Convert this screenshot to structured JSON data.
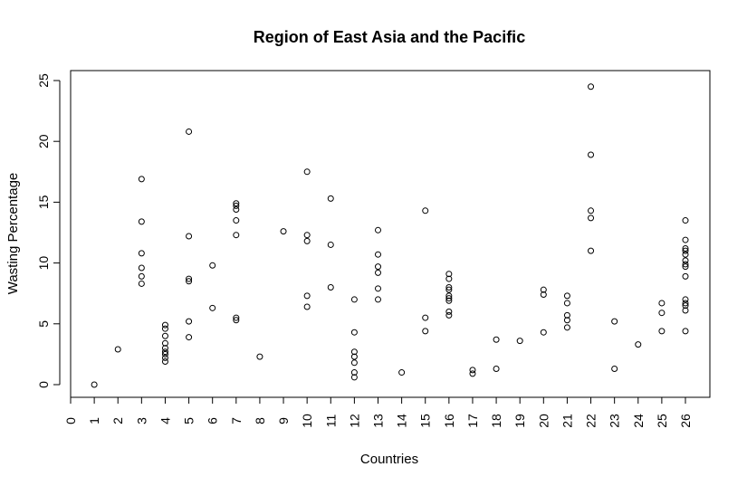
{
  "chart_data": {
    "type": "scatter",
    "title": "Region of East Asia and the Pacific",
    "xlabel": "Countries",
    "ylabel": "Wasting Percentage",
    "xlim": [
      0,
      26
    ],
    "ylim": [
      0,
      25
    ],
    "x_ticks": [
      0,
      1,
      2,
      3,
      4,
      5,
      6,
      7,
      8,
      9,
      10,
      11,
      12,
      13,
      14,
      15,
      16,
      17,
      18,
      19,
      20,
      21,
      22,
      23,
      24,
      25,
      26
    ],
    "y_ticks": [
      0,
      5,
      10,
      15,
      20,
      25
    ],
    "grid": false,
    "legend": "none",
    "marker": "open-circle",
    "points": [
      {
        "x": 1,
        "y": 0.0
      },
      {
        "x": 2,
        "y": 2.9
      },
      {
        "x": 3,
        "y": 16.9
      },
      {
        "x": 3,
        "y": 13.4
      },
      {
        "x": 3,
        "y": 10.8
      },
      {
        "x": 3,
        "y": 9.6
      },
      {
        "x": 3,
        "y": 8.9
      },
      {
        "x": 3,
        "y": 8.3
      },
      {
        "x": 4,
        "y": 4.9
      },
      {
        "x": 4,
        "y": 4.6
      },
      {
        "x": 4,
        "y": 4.0
      },
      {
        "x": 4,
        "y": 3.4
      },
      {
        "x": 4,
        "y": 3.0
      },
      {
        "x": 4,
        "y": 2.7
      },
      {
        "x": 4,
        "y": 2.5
      },
      {
        "x": 4,
        "y": 2.2
      },
      {
        "x": 4,
        "y": 1.9
      },
      {
        "x": 5,
        "y": 20.8
      },
      {
        "x": 5,
        "y": 12.2
      },
      {
        "x": 5,
        "y": 8.7
      },
      {
        "x": 5,
        "y": 8.5
      },
      {
        "x": 5,
        "y": 5.2
      },
      {
        "x": 5,
        "y": 3.9
      },
      {
        "x": 6,
        "y": 9.8
      },
      {
        "x": 6,
        "y": 6.3
      },
      {
        "x": 7,
        "y": 14.9
      },
      {
        "x": 7,
        "y": 14.7
      },
      {
        "x": 7,
        "y": 14.4
      },
      {
        "x": 7,
        "y": 13.5
      },
      {
        "x": 7,
        "y": 12.3
      },
      {
        "x": 7,
        "y": 5.5
      },
      {
        "x": 7,
        "y": 5.3
      },
      {
        "x": 8,
        "y": 2.3
      },
      {
        "x": 9,
        "y": 12.6
      },
      {
        "x": 10,
        "y": 17.5
      },
      {
        "x": 10,
        "y": 12.3
      },
      {
        "x": 10,
        "y": 11.8
      },
      {
        "x": 10,
        "y": 7.3
      },
      {
        "x": 10,
        "y": 6.4
      },
      {
        "x": 11,
        "y": 15.3
      },
      {
        "x": 11,
        "y": 11.5
      },
      {
        "x": 11,
        "y": 8.0
      },
      {
        "x": 12,
        "y": 7.0
      },
      {
        "x": 12,
        "y": 4.3
      },
      {
        "x": 12,
        "y": 2.7
      },
      {
        "x": 12,
        "y": 2.3
      },
      {
        "x": 12,
        "y": 1.8
      },
      {
        "x": 12,
        "y": 1.0
      },
      {
        "x": 12,
        "y": 0.6
      },
      {
        "x": 13,
        "y": 12.7
      },
      {
        "x": 13,
        "y": 10.7
      },
      {
        "x": 13,
        "y": 9.7
      },
      {
        "x": 13,
        "y": 9.2
      },
      {
        "x": 13,
        "y": 7.9
      },
      {
        "x": 13,
        "y": 7.0
      },
      {
        "x": 14,
        "y": 1.0
      },
      {
        "x": 15,
        "y": 14.3
      },
      {
        "x": 15,
        "y": 5.5
      },
      {
        "x": 15,
        "y": 4.4
      },
      {
        "x": 16,
        "y": 9.1
      },
      {
        "x": 16,
        "y": 8.7
      },
      {
        "x": 16,
        "y": 8.0
      },
      {
        "x": 16,
        "y": 7.8
      },
      {
        "x": 16,
        "y": 7.3
      },
      {
        "x": 16,
        "y": 7.1
      },
      {
        "x": 16,
        "y": 6.9
      },
      {
        "x": 16,
        "y": 6.0
      },
      {
        "x": 16,
        "y": 5.7
      },
      {
        "x": 17,
        "y": 1.2
      },
      {
        "x": 17,
        "y": 0.9
      },
      {
        "x": 18,
        "y": 3.7
      },
      {
        "x": 18,
        "y": 1.3
      },
      {
        "x": 19,
        "y": 3.6
      },
      {
        "x": 20,
        "y": 7.8
      },
      {
        "x": 20,
        "y": 7.4
      },
      {
        "x": 20,
        "y": 4.3
      },
      {
        "x": 21,
        "y": 7.3
      },
      {
        "x": 21,
        "y": 6.7
      },
      {
        "x": 21,
        "y": 5.7
      },
      {
        "x": 21,
        "y": 5.3
      },
      {
        "x": 21,
        "y": 4.7
      },
      {
        "x": 22,
        "y": 24.5
      },
      {
        "x": 22,
        "y": 18.9
      },
      {
        "x": 22,
        "y": 14.3
      },
      {
        "x": 22,
        "y": 13.7
      },
      {
        "x": 22,
        "y": 11.0
      },
      {
        "x": 23,
        "y": 5.2
      },
      {
        "x": 23,
        "y": 1.3
      },
      {
        "x": 24,
        "y": 3.3
      },
      {
        "x": 25,
        "y": 6.7
      },
      {
        "x": 25,
        "y": 5.9
      },
      {
        "x": 25,
        "y": 4.4
      },
      {
        "x": 26,
        "y": 13.5
      },
      {
        "x": 26,
        "y": 11.9
      },
      {
        "x": 26,
        "y": 11.2
      },
      {
        "x": 26,
        "y": 11.0
      },
      {
        "x": 26,
        "y": 10.7
      },
      {
        "x": 26,
        "y": 10.2
      },
      {
        "x": 26,
        "y": 9.9
      },
      {
        "x": 26,
        "y": 9.7
      },
      {
        "x": 26,
        "y": 8.9
      },
      {
        "x": 26,
        "y": 7.0
      },
      {
        "x": 26,
        "y": 6.7
      },
      {
        "x": 26,
        "y": 6.5
      },
      {
        "x": 26,
        "y": 6.1
      },
      {
        "x": 26,
        "y": 4.4
      }
    ]
  }
}
